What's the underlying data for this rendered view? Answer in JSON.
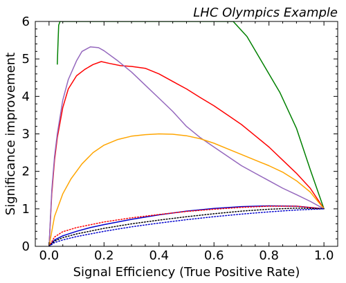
{
  "chart_data": {
    "type": "line",
    "title": "LHC Olympics Example",
    "xlabel": "Signal Efficiency (True Positive Rate)",
    "ylabel": "Significance improvement",
    "xlim": [
      -0.05,
      1.05
    ],
    "ylim": [
      0,
      6
    ],
    "xticks": [
      "0.0",
      "0.2",
      "0.4",
      "0.6",
      "0.8",
      "1.0"
    ],
    "xtick_values": [
      0.0,
      0.2,
      0.4,
      0.6,
      0.8,
      1.0
    ],
    "yticks": [
      "0",
      "1",
      "2",
      "3",
      "4",
      "5",
      "6"
    ],
    "ytick_values": [
      0,
      1,
      2,
      3,
      4,
      5,
      6
    ],
    "grid": false,
    "legend": "none",
    "series": [
      {
        "color": "#008000",
        "style": "solid",
        "x": [
          0.03,
          0.032,
          0.035,
          0.04,
          0.67,
          0.72,
          0.78,
          0.84,
          0.9,
          0.95,
          1.0
        ],
        "y": [
          4.85,
          5.3,
          5.9,
          6.0,
          6.0,
          5.6,
          4.85,
          4.1,
          3.15,
          2.05,
          1.0
        ]
      },
      {
        "color": "#ff0000",
        "style": "solid",
        "x": [
          0.0,
          0.01,
          0.02,
          0.03,
          0.05,
          0.07,
          0.1,
          0.13,
          0.16,
          0.19,
          0.22,
          0.26,
          0.3,
          0.35,
          0.4,
          0.45,
          0.5,
          0.55,
          0.6,
          0.65,
          0.7,
          0.75,
          0.8,
          0.85,
          0.9,
          0.95,
          1.0
        ],
        "y": [
          0.0,
          1.4,
          2.3,
          2.9,
          3.7,
          4.2,
          4.55,
          4.72,
          4.85,
          4.93,
          4.88,
          4.82,
          4.8,
          4.75,
          4.6,
          4.4,
          4.2,
          3.97,
          3.75,
          3.5,
          3.25,
          2.95,
          2.65,
          2.3,
          1.95,
          1.55,
          1.0
        ]
      },
      {
        "color": "#9467bd",
        "style": "solid",
        "x": [
          0.0,
          0.01,
          0.02,
          0.03,
          0.05,
          0.07,
          0.1,
          0.12,
          0.15,
          0.18,
          0.2,
          0.25,
          0.3,
          0.35,
          0.4,
          0.45,
          0.5,
          0.55,
          0.6,
          0.65,
          0.7,
          0.75,
          0.8,
          0.85,
          0.9,
          0.95,
          1.0
        ],
        "y": [
          0.0,
          1.5,
          2.4,
          3.0,
          3.9,
          4.45,
          4.95,
          5.2,
          5.32,
          5.3,
          5.22,
          4.95,
          4.65,
          4.3,
          3.95,
          3.6,
          3.2,
          2.9,
          2.65,
          2.4,
          2.15,
          1.95,
          1.75,
          1.55,
          1.38,
          1.2,
          1.0
        ]
      },
      {
        "color": "#ffa500",
        "style": "solid",
        "x": [
          0.0,
          0.02,
          0.05,
          0.08,
          0.12,
          0.16,
          0.2,
          0.25,
          0.3,
          0.35,
          0.4,
          0.45,
          0.5,
          0.55,
          0.6,
          0.65,
          0.7,
          0.75,
          0.8,
          0.85,
          0.9,
          0.95,
          1.0
        ],
        "y": [
          0.0,
          0.8,
          1.4,
          1.8,
          2.2,
          2.5,
          2.7,
          2.85,
          2.94,
          2.98,
          3.0,
          2.99,
          2.95,
          2.87,
          2.75,
          2.6,
          2.45,
          2.3,
          2.15,
          1.98,
          1.75,
          1.45,
          1.0
        ]
      },
      {
        "color": "#0000cd",
        "style": "solid",
        "x": [
          0.0,
          0.02,
          0.05,
          0.1,
          0.15,
          0.2,
          0.3,
          0.4,
          0.5,
          0.6,
          0.7,
          0.8,
          0.9,
          1.0
        ],
        "y": [
          0.0,
          0.17,
          0.28,
          0.4,
          0.5,
          0.58,
          0.72,
          0.84,
          0.94,
          1.01,
          1.06,
          1.08,
          1.07,
          1.0
        ]
      },
      {
        "color": "#ff0000",
        "style": "dotted",
        "x": [
          0.0,
          0.02,
          0.05,
          0.1,
          0.2,
          0.3,
          0.4,
          0.5,
          0.6,
          0.7,
          0.8,
          0.9,
          1.0
        ],
        "y": [
          0.0,
          0.25,
          0.39,
          0.5,
          0.65,
          0.76,
          0.85,
          0.93,
          0.99,
          1.04,
          1.07,
          1.07,
          1.0
        ]
      },
      {
        "color": "#000000",
        "style": "dotted",
        "x": [
          0.0,
          0.02,
          0.05,
          0.1,
          0.2,
          0.3,
          0.4,
          0.5,
          0.6,
          0.7,
          0.8,
          0.9,
          1.0
        ],
        "y": [
          0.0,
          0.14,
          0.23,
          0.33,
          0.48,
          0.6,
          0.7,
          0.79,
          0.87,
          0.94,
          0.99,
          1.02,
          1.0
        ]
      },
      {
        "color": "#0000cd",
        "style": "dotted",
        "x": [
          0.0,
          0.02,
          0.05,
          0.1,
          0.2,
          0.3,
          0.4,
          0.5,
          0.6,
          0.7,
          0.8,
          0.9,
          1.0
        ],
        "y": [
          0.0,
          0.1,
          0.17,
          0.26,
          0.4,
          0.52,
          0.62,
          0.71,
          0.79,
          0.86,
          0.92,
          0.97,
          1.0
        ]
      }
    ]
  }
}
